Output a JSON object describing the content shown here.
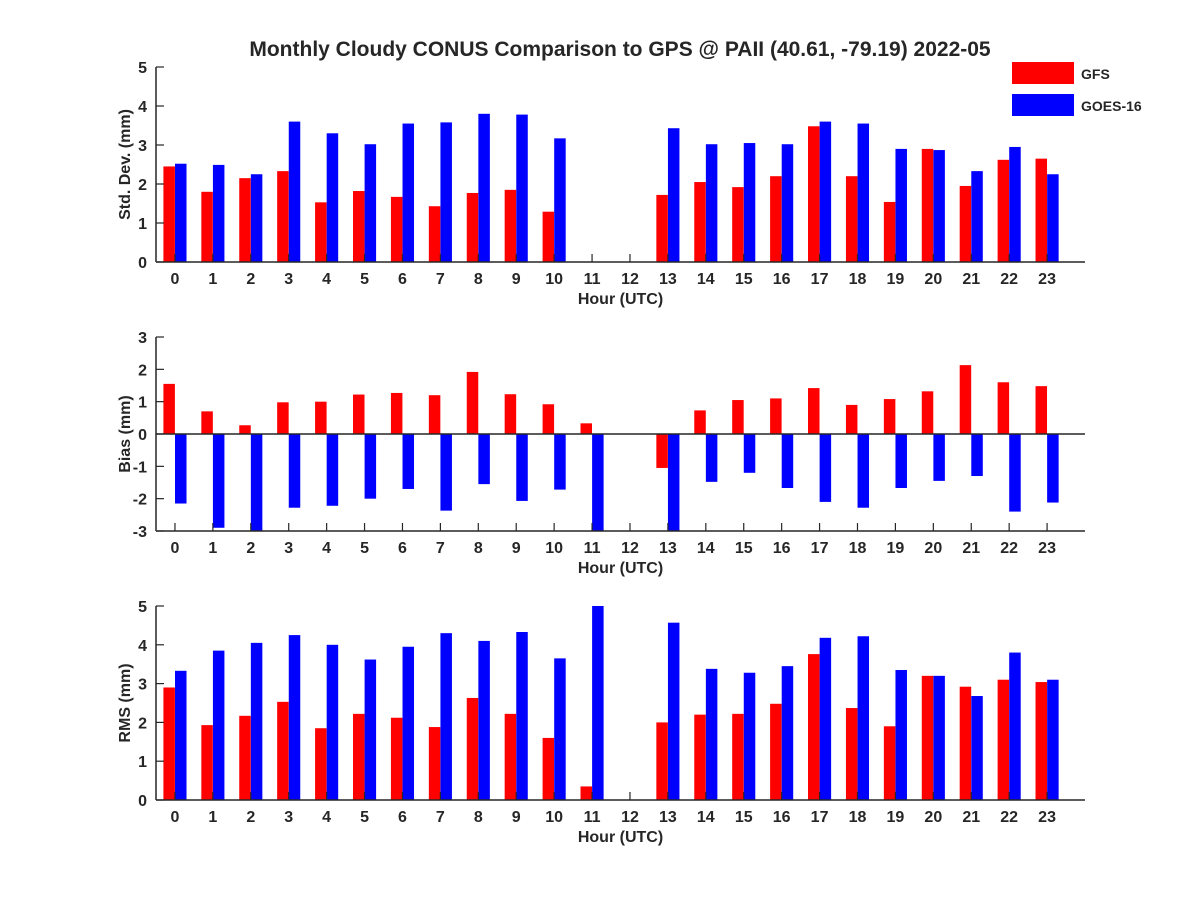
{
  "chart_data": [
    {
      "type": "bar",
      "id": "stddev",
      "title": "Monthly Cloudy CONUS Comparison to GPS @ PAII (40.61, -79.19) 2022-05",
      "xlabel": "Hour (UTC)",
      "ylabel": "Std. Dev. (mm)",
      "ylim": [
        0,
        5
      ],
      "yticks": [
        0,
        1,
        2,
        3,
        4,
        5
      ],
      "categories": [
        "0",
        "1",
        "2",
        "3",
        "4",
        "5",
        "6",
        "7",
        "8",
        "9",
        "10",
        "11",
        "12",
        "13",
        "14",
        "15",
        "16",
        "17",
        "18",
        "19",
        "20",
        "21",
        "22",
        "23"
      ],
      "series": [
        {
          "name": "GFS",
          "color": "#ff0000",
          "values": [
            2.45,
            1.8,
            2.15,
            2.33,
            1.53,
            1.82,
            1.67,
            1.43,
            1.77,
            1.85,
            1.29,
            null,
            null,
            1.72,
            2.05,
            1.92,
            2.2,
            3.48,
            2.2,
            1.54,
            2.9,
            1.95,
            2.62,
            2.65
          ]
        },
        {
          "name": "GOES-16",
          "color": "#0000ff",
          "values": [
            2.52,
            2.49,
            2.25,
            3.6,
            3.3,
            3.02,
            3.55,
            3.58,
            3.8,
            3.78,
            3.17,
            null,
            null,
            3.43,
            3.02,
            3.05,
            3.02,
            3.6,
            3.55,
            2.9,
            2.87,
            2.33,
            2.95,
            2.25
          ]
        }
      ],
      "legend": "top-right",
      "grid": false
    },
    {
      "type": "bar",
      "id": "bias",
      "xlabel": "Hour (UTC)",
      "ylabel": "Bias (mm)",
      "ylim": [
        -3,
        3
      ],
      "yticks": [
        -3,
        -2,
        -1,
        0,
        1,
        2,
        3
      ],
      "categories": [
        "0",
        "1",
        "2",
        "3",
        "4",
        "5",
        "6",
        "7",
        "8",
        "9",
        "10",
        "11",
        "12",
        "13",
        "14",
        "15",
        "16",
        "17",
        "18",
        "19",
        "20",
        "21",
        "22",
        "23"
      ],
      "series": [
        {
          "name": "GFS",
          "color": "#ff0000",
          "values": [
            1.55,
            0.7,
            0.27,
            0.98,
            1.0,
            1.22,
            1.27,
            1.2,
            1.92,
            1.23,
            0.92,
            0.33,
            null,
            -1.05,
            0.73,
            1.05,
            1.1,
            1.42,
            0.9,
            1.08,
            1.32,
            2.13,
            1.6,
            1.48
          ]
        },
        {
          "name": "GOES-16",
          "color": "#0000ff",
          "values": [
            -2.15,
            -2.9,
            -3.0,
            -2.28,
            -2.22,
            -2.0,
            -1.7,
            -2.37,
            -1.55,
            -2.07,
            -1.72,
            -3.0,
            null,
            -3.0,
            -1.48,
            -1.2,
            -1.67,
            -2.1,
            -2.28,
            -1.67,
            -1.45,
            -1.3,
            -2.4,
            -2.12
          ]
        }
      ],
      "grid": false
    },
    {
      "type": "bar",
      "id": "rms",
      "xlabel": "Hour (UTC)",
      "ylabel": "RMS (mm)",
      "ylim": [
        0,
        5
      ],
      "yticks": [
        0,
        1,
        2,
        3,
        4,
        5
      ],
      "categories": [
        "0",
        "1",
        "2",
        "3",
        "4",
        "5",
        "6",
        "7",
        "8",
        "9",
        "10",
        "11",
        "12",
        "13",
        "14",
        "15",
        "16",
        "17",
        "18",
        "19",
        "20",
        "21",
        "22",
        "23"
      ],
      "series": [
        {
          "name": "GFS",
          "color": "#ff0000",
          "values": [
            2.9,
            1.93,
            2.17,
            2.53,
            1.85,
            2.22,
            2.12,
            1.88,
            2.63,
            2.22,
            1.6,
            0.35,
            null,
            2.0,
            2.2,
            2.22,
            2.48,
            3.76,
            2.37,
            1.9,
            3.2,
            2.92,
            3.1,
            3.04
          ]
        },
        {
          "name": "GOES-16",
          "color": "#0000ff",
          "values": [
            3.33,
            3.85,
            4.05,
            4.25,
            4.0,
            3.62,
            3.95,
            4.3,
            4.1,
            4.33,
            3.65,
            5.0,
            null,
            4.57,
            3.38,
            3.28,
            3.45,
            4.18,
            4.22,
            3.35,
            3.2,
            2.68,
            3.8,
            3.1
          ]
        }
      ],
      "grid": false
    }
  ]
}
